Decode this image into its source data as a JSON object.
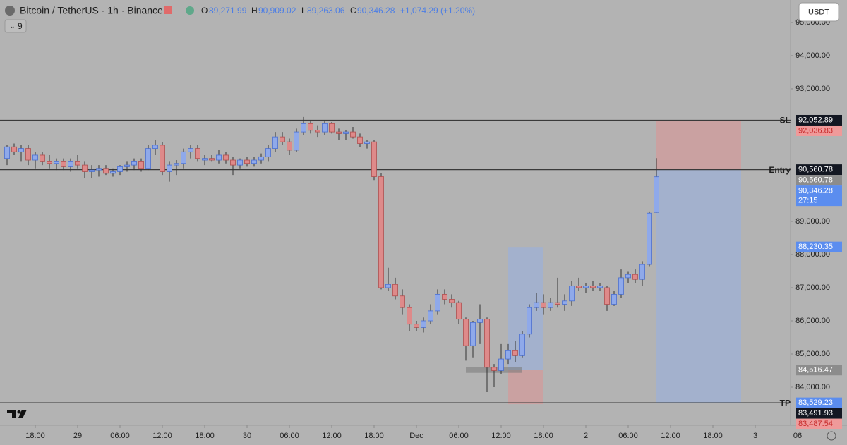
{
  "header": {
    "symbol": "Bitcoin / TetherUS · 1h · Binance",
    "o": "O",
    "open": "89,271.99",
    "h": "H",
    "high": "90,909.02",
    "l": "L",
    "low": "89,263.06",
    "c": "C",
    "close": "90,346.28",
    "change": "+1,074.29 (+1.20%)",
    "indicators": "9",
    "currency": "USDT"
  },
  "chart_data": {
    "type": "candlestick",
    "ylim": [
      82915,
      95680
    ],
    "yticks": [
      {
        "value": 95000,
        "label": "95,000.00"
      },
      {
        "value": 94000,
        "label": "94,000.00"
      },
      {
        "value": 93000,
        "label": "93,000.00"
      },
      {
        "value": 89000,
        "label": "89,000.00"
      },
      {
        "value": 88000,
        "label": "88,000.00"
      },
      {
        "value": 87000,
        "label": "87,000.00"
      },
      {
        "value": 86000,
        "label": "86,000.00"
      },
      {
        "value": 85000,
        "label": "85,000.00"
      },
      {
        "value": 84000,
        "label": "84,000.00"
      }
    ],
    "xlim": [
      -1,
      111
    ],
    "xticks": [
      {
        "value": 4,
        "label": "18:00"
      },
      {
        "value": 10,
        "label": "29"
      },
      {
        "value": 16,
        "label": "06:00"
      },
      {
        "value": 22,
        "label": "12:00"
      },
      {
        "value": 28,
        "label": "18:00"
      },
      {
        "value": 34,
        "label": "30"
      },
      {
        "value": 40,
        "label": "06:00"
      },
      {
        "value": 46,
        "label": "12:00"
      },
      {
        "value": 52,
        "label": "18:00"
      },
      {
        "value": 58,
        "label": "Dec"
      },
      {
        "value": 64,
        "label": "06:00"
      },
      {
        "value": 70,
        "label": "12:00"
      },
      {
        "value": 76,
        "label": "18:00"
      },
      {
        "value": 82,
        "label": "2"
      },
      {
        "value": 88,
        "label": "06:00"
      },
      {
        "value": 94,
        "label": "12:00"
      },
      {
        "value": 100,
        "label": "18:00"
      },
      {
        "value": 106,
        "label": "3"
      },
      {
        "value": 112,
        "label": "06"
      }
    ],
    "up_color": "#8fa9ea",
    "down_color": "#de8a8a",
    "open": [
      90900,
      91250,
      91100,
      91200,
      90850,
      91000,
      90800,
      90750,
      90800,
      90650,
      90800,
      90700,
      90500,
      90550,
      90600,
      90450,
      90500,
      90650,
      90700,
      90800,
      90600,
      91200,
      91300,
      90500,
      90700,
      90750,
      91100,
      91200,
      90850,
      90900,
      90850,
      91000,
      90850,
      90700,
      90850,
      90750,
      90850,
      90950,
      91200,
      91550,
      91400,
      91150,
      91700,
      91950,
      91750,
      91700,
      91950,
      91700,
      91650,
      91700,
      91550,
      91350,
      91400,
      90350,
      87000,
      87100,
      86750,
      86400,
      85900,
      85800,
      86000,
      86300,
      86800,
      86650,
      86550,
      86050,
      85250,
      85950,
      86050,
      84600,
      84500,
      84850,
      85100,
      84950,
      85600,
      86400,
      86550,
      86400,
      86550,
      86500,
      86600,
      87050,
      87000,
      87050,
      87000,
      87000,
      86500,
      86800,
      87300,
      87400,
      87250,
      87700,
      89271.99
    ],
    "high": [
      91300,
      91350,
      91300,
      91300,
      91100,
      91100,
      91000,
      90900,
      90900,
      90900,
      91000,
      90800,
      90700,
      90700,
      90700,
      90600,
      90700,
      90800,
      90900,
      90900,
      91300,
      91450,
      91400,
      90800,
      90850,
      91200,
      91300,
      91300,
      91000,
      91000,
      91150,
      91100,
      90950,
      90900,
      90950,
      90950,
      91050,
      91300,
      91700,
      91700,
      91500,
      91800,
      92150,
      92050,
      91900,
      92050,
      92000,
      91800,
      91750,
      91850,
      91650,
      91450,
      91450,
      90450,
      87600,
      87300,
      86950,
      86500,
      86000,
      86100,
      86500,
      86950,
      86950,
      86800,
      86600,
      86100,
      86000,
      86500,
      86100,
      84700,
      85300,
      85300,
      85400,
      85700,
      86500,
      86850,
      86800,
      86700,
      87300,
      86800,
      87200,
      87300,
      87150,
      87200,
      87150,
      87050,
      86900,
      87550,
      87500,
      87550,
      87800,
      89300,
      90909.02
    ],
    "low": [
      90700,
      91000,
      90800,
      90700,
      90600,
      90700,
      90600,
      90550,
      90550,
      90500,
      90600,
      90300,
      90300,
      90350,
      90400,
      90350,
      90400,
      90500,
      90550,
      90500,
      90550,
      91000,
      90400,
      90200,
      90400,
      90600,
      90900,
      90800,
      90700,
      90800,
      90750,
      90750,
      90400,
      90600,
      90650,
      90650,
      90750,
      90800,
      91100,
      91300,
      91000,
      91100,
      91600,
      91650,
      91550,
      91600,
      91650,
      91450,
      91450,
      91500,
      91250,
      91200,
      90250,
      86950,
      86900,
      86650,
      86200,
      85700,
      85700,
      85650,
      85900,
      86200,
      86500,
      86400,
      85900,
      84800,
      84900,
      85300,
      83850,
      84000,
      84400,
      84700,
      84750,
      84900,
      85500,
      86300,
      86200,
      86300,
      86400,
      86300,
      86450,
      86900,
      86850,
      86900,
      86900,
      86300,
      86450,
      86700,
      87150,
      87150,
      87050,
      87650,
      89263.06
    ],
    "close": [
      91250,
      91100,
      91200,
      90850,
      91000,
      90800,
      90750,
      90800,
      90650,
      90800,
      90700,
      90500,
      90550,
      90600,
      90450,
      90500,
      90650,
      90700,
      90800,
      90600,
      91200,
      91300,
      90500,
      90700,
      90750,
      91100,
      91200,
      90900,
      90900,
      90850,
      91000,
      90850,
      90700,
      90850,
      90750,
      90850,
      90950,
      91200,
      91550,
      91400,
      91150,
      91700,
      91950,
      91750,
      91700,
      91950,
      91700,
      91650,
      91700,
      91550,
      91350,
      91400,
      90350,
      87000,
      87100,
      86750,
      86400,
      85900,
      85800,
      86000,
      86300,
      86800,
      86650,
      86550,
      86050,
      85250,
      85950,
      86050,
      84600,
      84500,
      84850,
      85100,
      84950,
      85600,
      86400,
      86550,
      86400,
      86550,
      86500,
      86600,
      87050,
      87000,
      87050,
      87000,
      87050,
      86500,
      86800,
      87300,
      87400,
      87250,
      87700,
      89250,
      90346.28
    ],
    "lines": [
      {
        "name": "SL",
        "value": 92052.89
      },
      {
        "name": "Entry",
        "value": 90560.78
      },
      {
        "name": "TP",
        "value": 83529.23
      }
    ],
    "price_labels": [
      {
        "value": 92052.89,
        "label": "92,052.89",
        "color": "#131722"
      },
      {
        "value": 92036.83,
        "label": "92,036.83",
        "color": "#ef9a9a"
      },
      {
        "value": 90560.78,
        "label": "90,560.78",
        "color": "#131722"
      },
      {
        "value": 90560.78,
        "label": "90,560.78",
        "color": "#8c8c8c"
      },
      {
        "value": 90346.28,
        "label": "90,346.28",
        "color": "#5b8def",
        "countdown": "27:15"
      },
      {
        "value": 88230.35,
        "label": "88,230.35",
        "color": "#5b8def"
      },
      {
        "value": 84516.47,
        "label": "84,516.47",
        "color": "#8c8c8c"
      },
      {
        "value": 83529.23,
        "label": "83,529.23",
        "color": "#5b8def"
      },
      {
        "value": 83491.93,
        "label": "83,491.93",
        "color": "#131722"
      },
      {
        "value": 83487.54,
        "label": "83,487.54",
        "color": "#ef9a9a"
      }
    ]
  }
}
